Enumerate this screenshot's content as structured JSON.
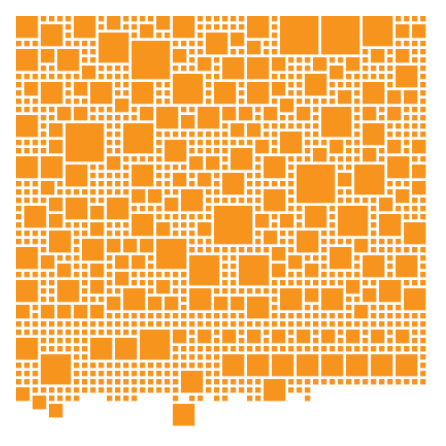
{
  "colors": {
    "tile": "#F7941D",
    "background": "#FFFFFF"
  },
  "artwork": {
    "name": "orange-square-mosaic"
  }
}
